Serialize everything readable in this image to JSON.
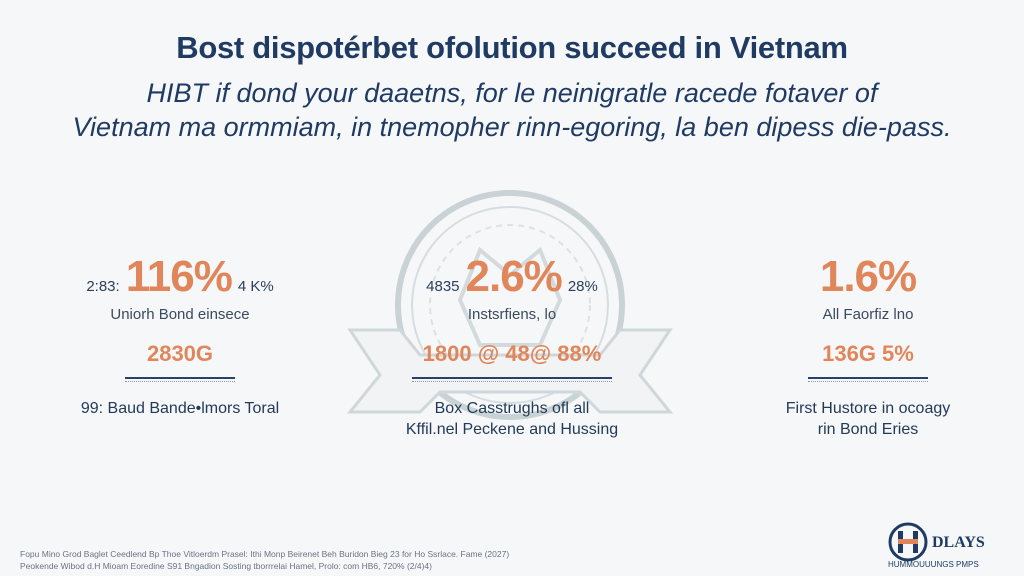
{
  "header": {
    "title": "Bost dispotérbet ofolution succeed in Vietnam",
    "subtitle_line1": "HIBT if dond your daaetns, for le neinigratle racede fotaver of",
    "subtitle_line2": "Vietnam ma ormmiam, in tnemopher rinn-egoring, la ben dipess die-pass."
  },
  "stats": [
    {
      "left_small": "2:83:",
      "big": "116%",
      "right_small": "4 K%",
      "label": "Uniorh Bond einsece",
      "mid": "2830G",
      "caption_line1": "99: Baud Bande•lmors Toral",
      "caption_line2": ""
    },
    {
      "left_small": "4835",
      "big": "2.6%",
      "right_small": "28%",
      "label": "Instsrfiens, lo",
      "mid": "1800 @ 48@ 88%",
      "caption_line1": "Box Casstrughs ofl all",
      "caption_line2": "Kffil.nel Peckene and Hussing"
    },
    {
      "left_small": "",
      "big": "1.6%",
      "right_small": "",
      "label": "All Faorfiz lno",
      "mid": "136G 5%",
      "caption_line1": "First Hustore in ocoagy",
      "caption_line2": "rin Bond Eries"
    }
  ],
  "footer": {
    "footnote_line1": "Fopu Mino Grod Baglet Ceedlend Bp Thoe Vitloerdm Prasel: Ithi Monp Beirenet Beh Buridon Bieg 23 for Ho Ssrlace. Fame (2027)",
    "footnote_line2": "Peokende Wibod d.H Mioam Eoredine S91 Bngadion Sosting tborrrelai Hamel, Prolo: com HB6, 720% (2/4)4)",
    "logo_text": "DLAYS",
    "logo_sub": "HUMMOUUUNGS PMPS"
  },
  "colors": {
    "accent_orange": "#e0865a",
    "navy": "#1f3b63"
  }
}
